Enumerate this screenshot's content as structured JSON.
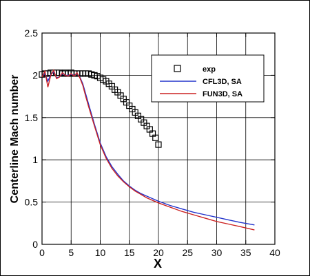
{
  "chart_data": {
    "type": "line",
    "xlabel": "X",
    "ylabel": "Centerline Mach number",
    "xlim": [
      0,
      40
    ],
    "ylim": [
      0,
      2.5
    ],
    "x_ticks": [
      0,
      5,
      10,
      15,
      20,
      25,
      30,
      35,
      40
    ],
    "y_ticks": [
      0,
      0.5,
      1,
      1.5,
      2,
      2.5
    ],
    "x_tick_labels": [
      "0",
      "5",
      "10",
      "15",
      "20",
      "25",
      "30",
      "35",
      "40"
    ],
    "y_tick_labels": [
      "0",
      "0.5",
      "1",
      "1.5",
      "2",
      "2.5"
    ],
    "grid": true,
    "legend_position": "top-right",
    "series": [
      {
        "name": "exp",
        "kind": "marker",
        "color": "#000000",
        "x": [
          0,
          0.5,
          1,
          1.5,
          2,
          2.5,
          3,
          3.5,
          4,
          4.5,
          5,
          5.5,
          6,
          6.5,
          7,
          7.5,
          8,
          8.5,
          9,
          9.5,
          10,
          10.5,
          11,
          11.5,
          12,
          12.5,
          13,
          13.5,
          14,
          14.5,
          15,
          15.5,
          16,
          16.5,
          17,
          17.5,
          18,
          18.5,
          19,
          19.5,
          20
        ],
        "y": [
          2.01,
          2.02,
          2.02,
          2.03,
          2.03,
          2.03,
          2.03,
          2.02,
          2.03,
          2.02,
          2.03,
          2.02,
          2.02,
          2.02,
          2.02,
          2.02,
          2.02,
          2.01,
          2.0,
          1.99,
          1.97,
          1.95,
          1.93,
          1.9,
          1.87,
          1.83,
          1.8,
          1.76,
          1.72,
          1.68,
          1.64,
          1.6,
          1.56,
          1.52,
          1.48,
          1.44,
          1.4,
          1.36,
          1.31,
          1.26,
          1.18
        ]
      },
      {
        "name": "CFL3D, SA",
        "kind": "line",
        "color": "#2233cc",
        "x": [
          0,
          0.5,
          1,
          1.5,
          2,
          2.5,
          3,
          3.5,
          4,
          4.5,
          5,
          5.5,
          6,
          6.5,
          7,
          7.5,
          8,
          9,
          10,
          11,
          12,
          13,
          14,
          15,
          16,
          17,
          18,
          20,
          22,
          24,
          26,
          28,
          30,
          32,
          34,
          36.5
        ],
        "y": [
          1.99,
          2.02,
          1.93,
          2.01,
          2.04,
          1.97,
          1.98,
          2.02,
          2.0,
          2.0,
          2.01,
          2.0,
          2.02,
          1.98,
          1.9,
          1.78,
          1.66,
          1.42,
          1.2,
          1.04,
          0.92,
          0.83,
          0.75,
          0.69,
          0.64,
          0.6,
          0.57,
          0.51,
          0.46,
          0.42,
          0.38,
          0.35,
          0.32,
          0.29,
          0.26,
          0.23
        ]
      },
      {
        "name": "FUN3D, SA",
        "kind": "line",
        "color": "#cc2222",
        "x": [
          0,
          0.5,
          1,
          1.5,
          2,
          2.5,
          3,
          3.5,
          4,
          4.5,
          5,
          5.5,
          6,
          6.5,
          7,
          7.5,
          8,
          9,
          10,
          11,
          12,
          13,
          14,
          15,
          16,
          17,
          18,
          20,
          22,
          24,
          26,
          28,
          30,
          32,
          34,
          36.5
        ],
        "y": [
          1.98,
          2.05,
          1.86,
          2.0,
          2.06,
          1.96,
          1.98,
          2.03,
          2.0,
          1.99,
          2.02,
          1.99,
          2.03,
          1.97,
          1.88,
          1.75,
          1.63,
          1.4,
          1.18,
          1.02,
          0.9,
          0.81,
          0.74,
          0.68,
          0.63,
          0.59,
          0.55,
          0.49,
          0.44,
          0.39,
          0.35,
          0.31,
          0.27,
          0.24,
          0.21,
          0.17
        ]
      }
    ]
  }
}
